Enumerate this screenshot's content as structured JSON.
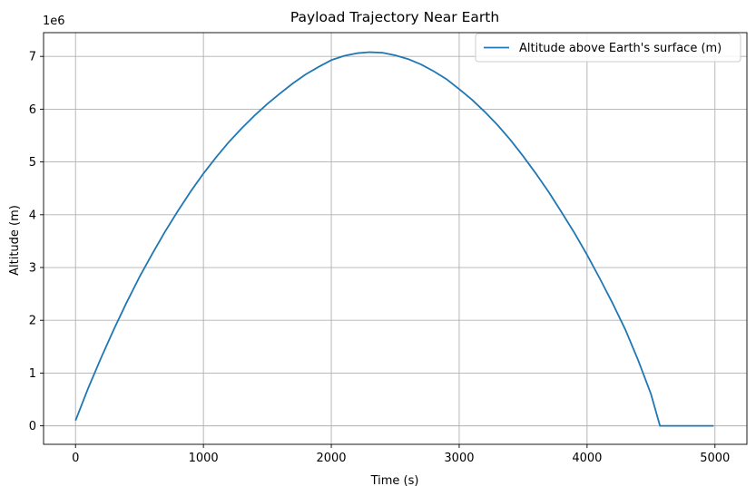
{
  "chart_data": {
    "type": "line",
    "title": "Payload Trajectory Near Earth",
    "xlabel": "Time (s)",
    "ylabel": "Altitude (m)",
    "y_offset_label": "1e6",
    "xlim": [
      -250,
      5250
    ],
    "ylim": [
      -0.35,
      7.45
    ],
    "x_ticks": [
      0,
      1000,
      2000,
      3000,
      4000,
      5000
    ],
    "x_tick_labels": [
      "0",
      "1000",
      "2000",
      "3000",
      "4000",
      "5000"
    ],
    "y_ticks": [
      0,
      1,
      2,
      3,
      4,
      5,
      6,
      7
    ],
    "y_tick_labels": [
      "0",
      "1",
      "2",
      "3",
      "4",
      "5",
      "6",
      "7"
    ],
    "grid": true,
    "legend_position": "top-right",
    "series": [
      {
        "name": "Altitude above Earth's surface (m)",
        "color": "#1f77b4",
        "x": [
          0,
          100,
          200,
          300,
          400,
          500,
          600,
          700,
          800,
          900,
          1000,
          1100,
          1200,
          1300,
          1400,
          1500,
          1600,
          1700,
          1800,
          1900,
          2000,
          2100,
          2200,
          2300,
          2400,
          2500,
          2600,
          2700,
          2800,
          2900,
          3000,
          3100,
          3200,
          3300,
          3400,
          3500,
          3600,
          3700,
          3800,
          3900,
          4000,
          4100,
          4200,
          4300,
          4400,
          4500,
          4570,
          4600,
          4700,
          4800,
          4900,
          4990
        ],
        "y": [
          0.1,
          0.72,
          1.29,
          1.83,
          2.34,
          2.82,
          3.26,
          3.68,
          4.07,
          4.44,
          4.78,
          5.09,
          5.38,
          5.64,
          5.88,
          6.1,
          6.3,
          6.49,
          6.66,
          6.8,
          6.93,
          7.01,
          7.06,
          7.08,
          7.07,
          7.02,
          6.95,
          6.85,
          6.72,
          6.57,
          6.38,
          6.18,
          5.95,
          5.7,
          5.42,
          5.11,
          4.78,
          4.43,
          4.05,
          3.66,
          3.24,
          2.79,
          2.32,
          1.82,
          1.24,
          0.6,
          0.0,
          0.0,
          0.0,
          0.0,
          0.0,
          0.0
        ]
      }
    ]
  }
}
